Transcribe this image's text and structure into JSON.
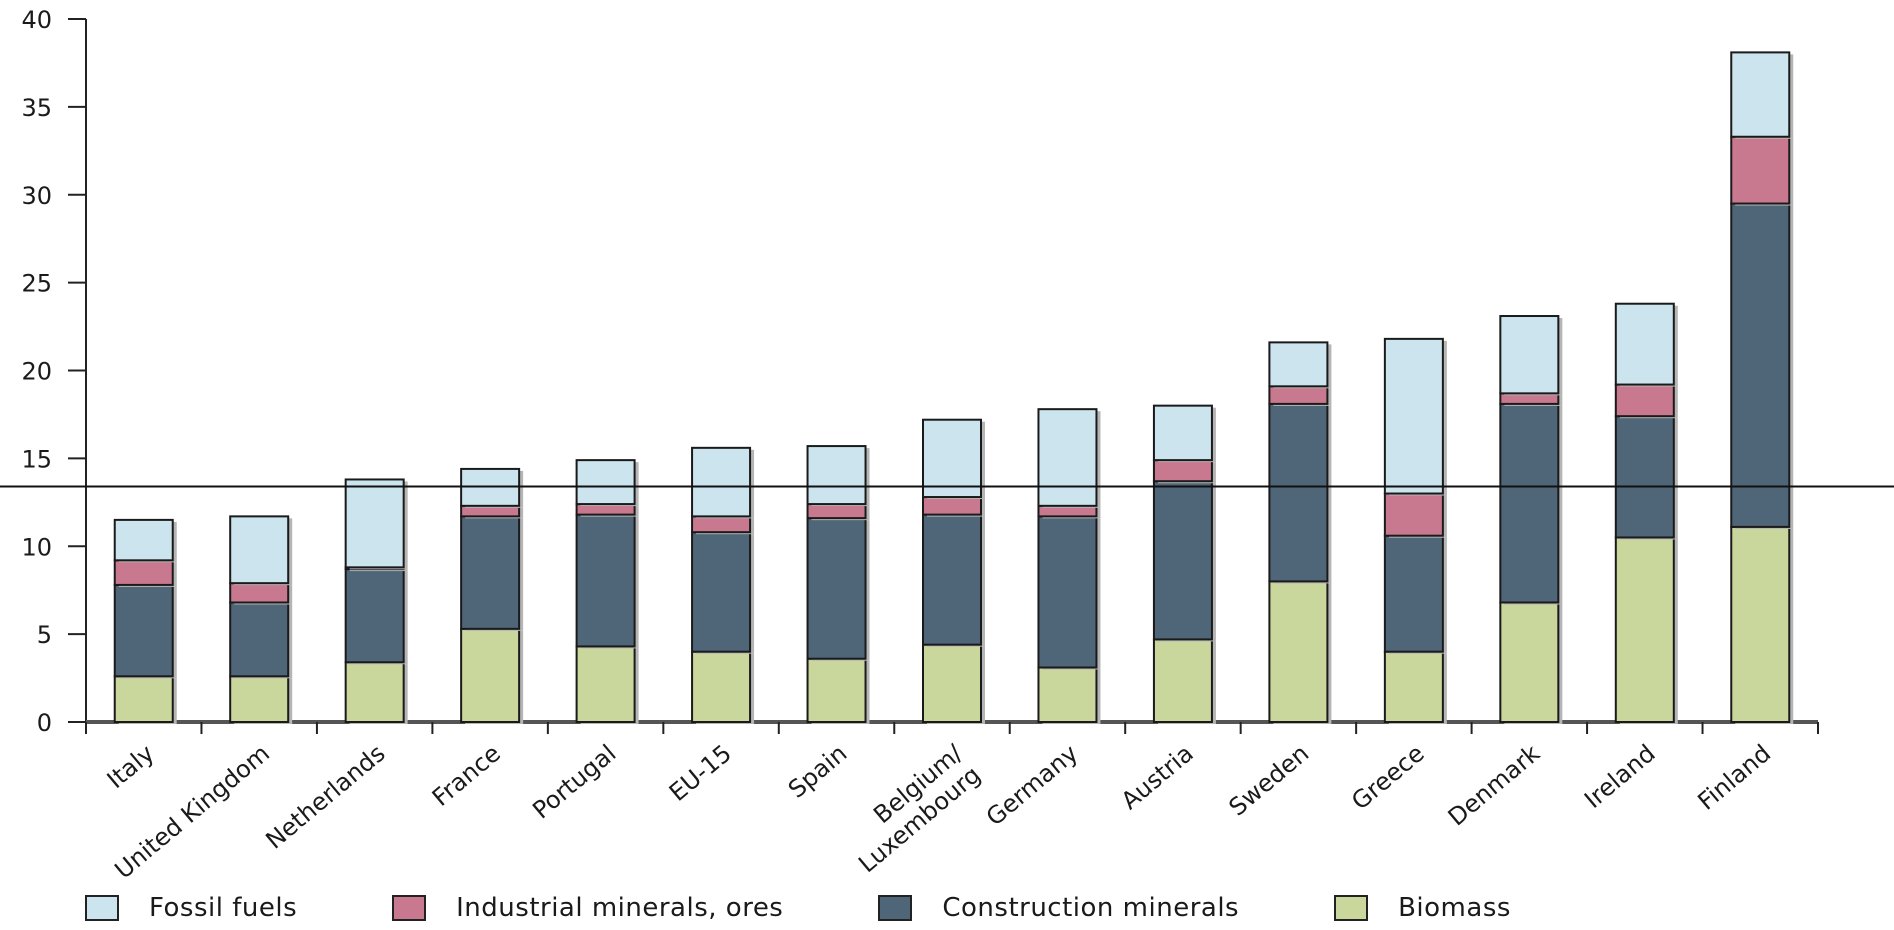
{
  "chart_data": {
    "type": "bar",
    "stacked": true,
    "categories": [
      "Italy",
      "United Kingdom",
      "Netherlands",
      "France",
      "Portugal",
      "EU-15",
      "Spain",
      "Belgium/\nLuxembourg",
      "Germany",
      "Austria",
      "Sweden",
      "Greece",
      "Denmark",
      "Ireland",
      "Finland"
    ],
    "series": [
      {
        "name": "Biomass",
        "color": "#c9d69c",
        "values": [
          2.6,
          2.6,
          3.4,
          5.3,
          4.3,
          4.0,
          3.6,
          4.4,
          3.1,
          4.7,
          8.0,
          4.0,
          6.8,
          10.5,
          11.1
        ]
      },
      {
        "name": "Construction minerals",
        "color": "#4f6578",
        "values": [
          5.2,
          4.2,
          5.3,
          6.4,
          7.5,
          6.8,
          8.0,
          7.4,
          8.6,
          9.0,
          10.1,
          6.6,
          11.3,
          6.9,
          18.4
        ]
      },
      {
        "name": "Industrial minerals, ores",
        "color": "#c8788f",
        "values": [
          1.4,
          1.1,
          0.1,
          0.6,
          0.6,
          0.9,
          0.8,
          1.0,
          0.6,
          1.2,
          1.0,
          2.4,
          0.6,
          1.8,
          3.8
        ]
      },
      {
        "name": "Fossil fuels",
        "color": "#cce4ee",
        "values": [
          2.3,
          3.8,
          5.0,
          2.1,
          2.5,
          3.9,
          3.3,
          4.4,
          5.5,
          3.1,
          2.5,
          8.8,
          4.4,
          4.6,
          4.8
        ]
      }
    ],
    "legend_order": [
      "Fossil fuels",
      "Industrial minerals, ores",
      "Construction minerals",
      "Biomass"
    ],
    "yticks": [
      0,
      5,
      10,
      15,
      20,
      25,
      30,
      35,
      40
    ],
    "ylim": [
      0,
      40
    ],
    "reference_line": 13.4,
    "title": "",
    "xlabel": "",
    "ylabel": "",
    "grid": false,
    "legend_position": "bottom"
  }
}
